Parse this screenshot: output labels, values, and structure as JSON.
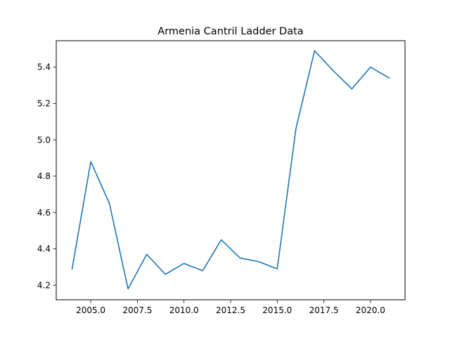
{
  "chart_data": {
    "type": "line",
    "title": "Armenia Cantril Ladder Data",
    "xlabel": "",
    "ylabel": "",
    "x": [
      2004,
      2005,
      2006,
      2007,
      2008,
      2009,
      2010,
      2011,
      2012,
      2013,
      2014,
      2015,
      2016,
      2017,
      2018,
      2019,
      2020,
      2021
    ],
    "series": [
      {
        "values": [
          4.29,
          4.88,
          4.65,
          4.18,
          4.37,
          4.26,
          4.32,
          4.28,
          4.45,
          4.35,
          4.33,
          4.29,
          5.06,
          5.49,
          5.38,
          5.28,
          5.4,
          5.34
        ],
        "color": "#1f77b4"
      }
    ],
    "xlim": [
      2003.15,
      2021.85
    ],
    "ylim": [
      4.12,
      5.545
    ],
    "xticks": [
      2005.0,
      2007.5,
      2010.0,
      2012.5,
      2015.0,
      2017.5,
      2020.0
    ],
    "xtick_labels": [
      "2005.0",
      "2007.5",
      "2010.0",
      "2012.5",
      "2015.0",
      "2017.5",
      "2020.0"
    ],
    "yticks": [
      4.2,
      4.4,
      4.6,
      4.8,
      5.0,
      5.2,
      5.4
    ],
    "ytick_labels": [
      "4.2",
      "4.4",
      "4.6",
      "4.8",
      "5.0",
      "5.2",
      "5.4"
    ],
    "grid": false,
    "legend": "none"
  }
}
